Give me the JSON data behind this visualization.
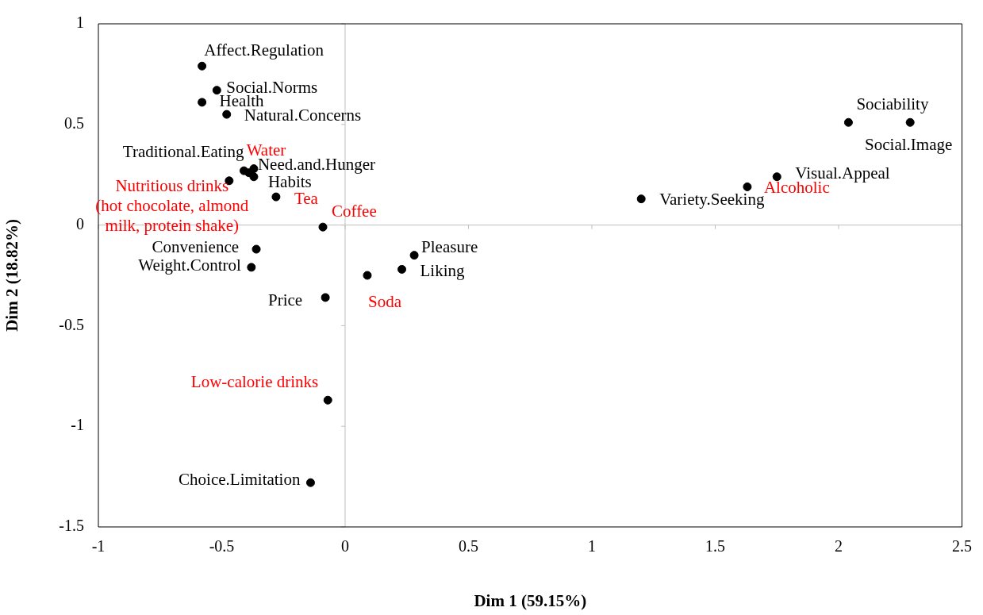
{
  "chart_data": {
    "type": "scatter",
    "xlabel": "Dim 1 (59.15%)",
    "ylabel": "Dim 2 (18.82%)",
    "xlim": [
      -1,
      2.5
    ],
    "xticks": [
      -1,
      -0.5,
      0,
      0.5,
      1,
      1.5,
      2,
      2.5
    ],
    "ylim": [
      -1.5,
      1
    ],
    "yticks": [
      -1.5,
      -1,
      -0.5,
      0,
      0.5,
      1
    ],
    "legend": false,
    "marker": "circle",
    "series": [
      {
        "color": "#000000",
        "x": [
          -0.58,
          -0.52,
          -0.58,
          -0.48,
          -0.41,
          -0.37,
          -0.37,
          -0.36,
          -0.38,
          -0.08,
          -0.14,
          0.28,
          0.23,
          1.2,
          1.75,
          2.04,
          2.29
        ],
        "values": [
          0.79,
          0.67,
          0.61,
          0.55,
          0.27,
          0.28,
          0.24,
          -0.12,
          -0.21,
          -0.36,
          -1.28,
          -0.15,
          -0.22,
          0.13,
          0.24,
          0.51,
          0.51
        ],
        "value_labels": [
          "Affect.Regulation",
          "Social.Norms",
          "Health",
          "Natural.Concerns",
          "Traditional.Eating",
          "Need.and.Hunger",
          "Habits",
          "Convenience",
          "Weight.Control",
          "Price",
          "Choice.Limitation",
          "Pleasure",
          "Liking",
          "Variety.Seeking",
          "Visual.Appeal",
          "Sociability",
          "Social.Image"
        ]
      },
      {
        "color": "#000000",
        "x": [
          -0.39,
          -0.47,
          -0.28,
          -0.09,
          0.09,
          1.63,
          -0.07
        ],
        "values": [
          0.26,
          0.22,
          0.14,
          -0.01,
          -0.25,
          0.19,
          -0.87
        ],
        "value_labels": [
          "Water",
          "Nutritious drinks (hot chocolate, almond milk, protein shake)",
          "Tea",
          "Coffee",
          "Soda",
          "Alcoholic",
          "Low-calorie drinks"
        ]
      }
    ]
  }
}
